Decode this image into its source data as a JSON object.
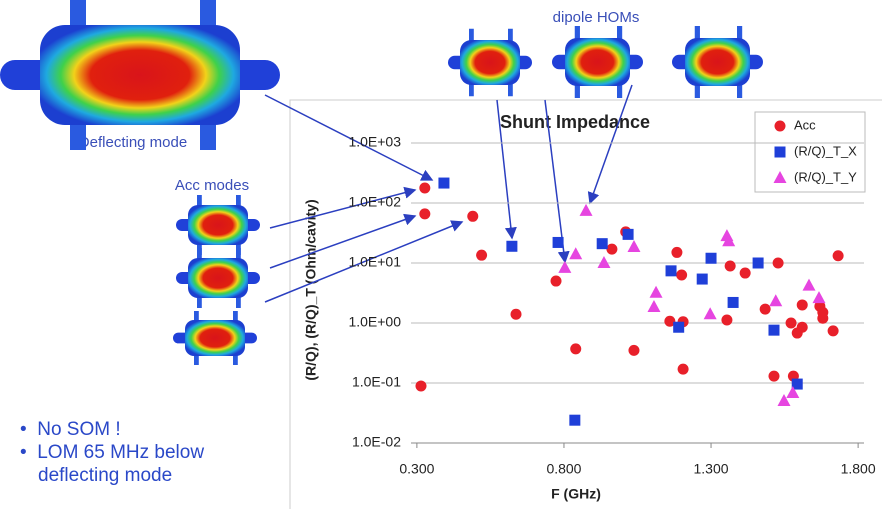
{
  "chart_data": {
    "type": "scatter",
    "title": "Shunt Impedance",
    "x_label": "F (GHz)",
    "y_label": "(R/Q), (R/Q)_T (Ohm/cavity)",
    "yscale": "log",
    "grid": true,
    "legend": "top-right",
    "xlim": [
      0.28,
      1.82
    ],
    "xticks": [
      {
        "value": 0.3,
        "label": "0.300"
      },
      {
        "value": 0.8,
        "label": "0.800"
      },
      {
        "value": 1.3,
        "label": "1.300"
      },
      {
        "value": 1.8,
        "label": "1.800"
      }
    ],
    "ylim": [
      0.01,
      1000
    ],
    "yticks": [
      {
        "value": 0.01,
        "label": "1.0E-02"
      },
      {
        "value": 0.1,
        "label": "1.0E-01"
      },
      {
        "value": 1,
        "label": "1.0E+00"
      },
      {
        "value": 10,
        "label": "1.0E+01"
      },
      {
        "value": 100,
        "label": "1.0E+02"
      },
      {
        "value": 1000,
        "label": "1.0E+03"
      }
    ],
    "series": [
      {
        "name": "Acc",
        "color": "#e8202a",
        "marker": "circle",
        "x": [
          0.327,
          0.327,
          0.314,
          0.49,
          0.52,
          0.637,
          0.773,
          0.84,
          0.963,
          1.01,
          1.038,
          1.184,
          1.2,
          1.16,
          1.205,
          1.205,
          1.365,
          1.416,
          1.354,
          1.484,
          1.528,
          1.514,
          1.58,
          1.572,
          1.593,
          1.61,
          1.61,
          1.67,
          1.68,
          1.68,
          1.715,
          1.732
        ],
        "values": [
          178,
          66,
          0.089,
          60,
          13.5,
          1.4,
          5,
          0.37,
          17,
          33,
          0.35,
          15,
          6.3,
          1.07,
          1.05,
          0.17,
          8.9,
          6.8,
          1.12,
          1.7,
          10,
          0.13,
          0.13,
          1.0,
          0.68,
          0.85,
          2,
          1.9,
          1.5,
          1.2,
          0.74,
          13.2
        ]
      },
      {
        "name": "(R/Q)_T_X",
        "color": "#1f3fd8",
        "marker": "square",
        "x": [
          0.392,
          0.623,
          0.78,
          0.93,
          1.018,
          1.164,
          1.19,
          1.27,
          1.3,
          1.375,
          1.46,
          1.514,
          1.593,
          0.837
        ],
        "values": [
          215,
          19,
          22,
          21,
          30,
          7.4,
          0.85,
          5.4,
          12,
          2.2,
          10,
          0.76,
          0.096,
          0.024
        ]
      },
      {
        "name": "(R/Q)_T_Y",
        "color": "#e645e0",
        "marker": "triangle",
        "x": [
          0.875,
          0.803,
          0.84,
          0.936,
          1.038,
          1.113,
          1.106,
          1.297,
          1.354,
          1.36,
          1.52,
          1.548,
          1.578,
          1.633,
          1.667
        ],
        "values": [
          74,
          8.3,
          14,
          10,
          18.5,
          3.2,
          1.85,
          1.4,
          28,
          23,
          2.3,
          0.05,
          0.068,
          4.2,
          2.6
        ]
      }
    ]
  },
  "annotations": {
    "deflecting": "Deflecting mode",
    "acc": "Acc modes",
    "dipole": "dipole HOMs"
  },
  "bullets": [
    "No SOM !",
    "LOM 65 MHz below deflecting mode"
  ]
}
